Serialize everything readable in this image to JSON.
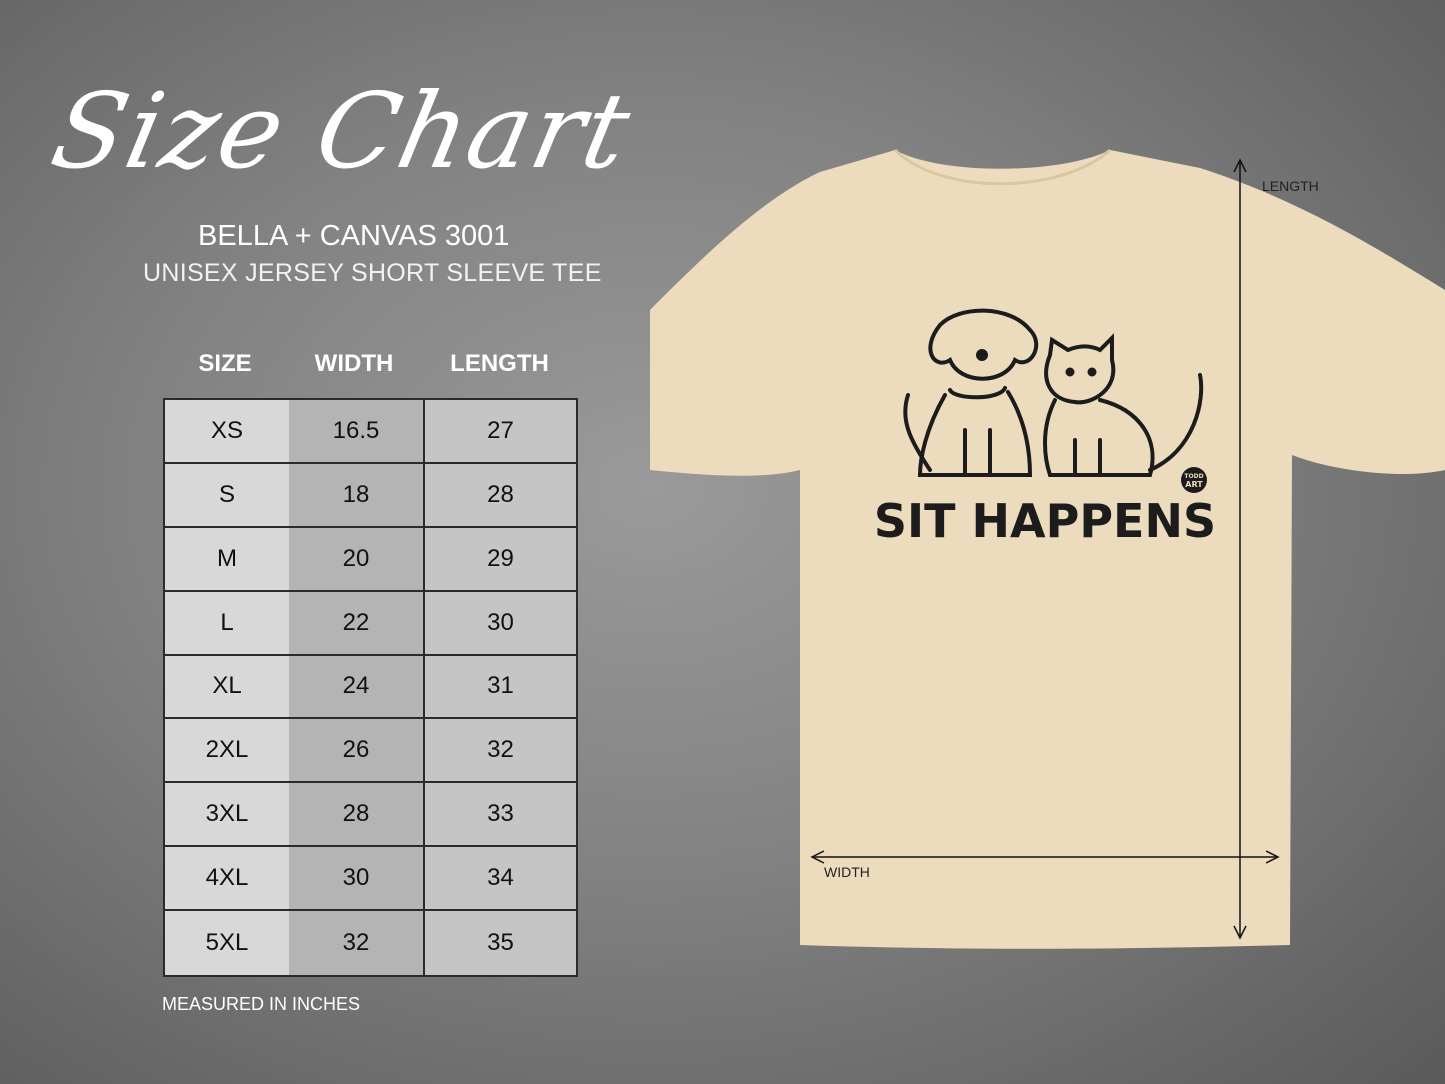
{
  "title": "Size Chart",
  "brand": "BELLA + CANVAS 3001",
  "model": "UNISEX JERSEY SHORT SLEEVE TEE",
  "table": {
    "headers": [
      "SIZE",
      "WIDTH",
      "LENGTH"
    ],
    "rows": [
      [
        "XS",
        "16.5",
        "27"
      ],
      [
        "S",
        "18",
        "28"
      ],
      [
        "M",
        "20",
        "29"
      ],
      [
        "L",
        "22",
        "30"
      ],
      [
        "XL",
        "24",
        "31"
      ],
      [
        "2XL",
        "26",
        "32"
      ],
      [
        "3XL",
        "28",
        "33"
      ],
      [
        "4XL",
        "30",
        "34"
      ],
      [
        "5XL",
        "32",
        "35"
      ]
    ]
  },
  "note": "MEASURED IN INCHES",
  "shirt": {
    "color": "#ecdcbd",
    "design_text": "SIT HAPPENS",
    "logo_text": [
      "TODD",
      "ART"
    ],
    "length_label": "LENGTH",
    "width_label": "WIDTH"
  }
}
